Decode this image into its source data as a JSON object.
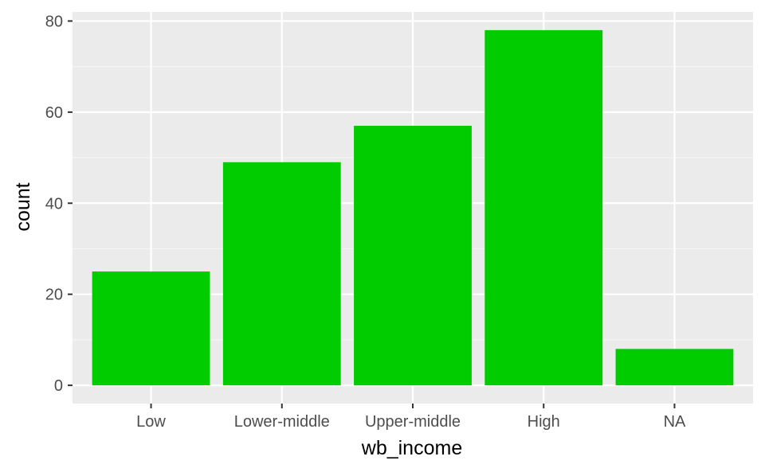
{
  "chart_data": {
    "type": "bar",
    "categories": [
      "Low",
      "Lower-middle",
      "Upper-middle",
      "High",
      "NA"
    ],
    "values": [
      25,
      49,
      57,
      78,
      8
    ],
    "xlabel": "wb_income",
    "ylabel": "count",
    "ylim": [
      -4,
      82
    ],
    "yticks": [
      0,
      20,
      40,
      60,
      80
    ],
    "grid": true,
    "colors": {
      "bar": "#00cc00",
      "panel": "#ebebeb",
      "grid_major": "#ffffff",
      "grid_minor": "#f5f5f5",
      "tick_text": "#4d4d4d",
      "tick_mark": "#333333"
    }
  }
}
